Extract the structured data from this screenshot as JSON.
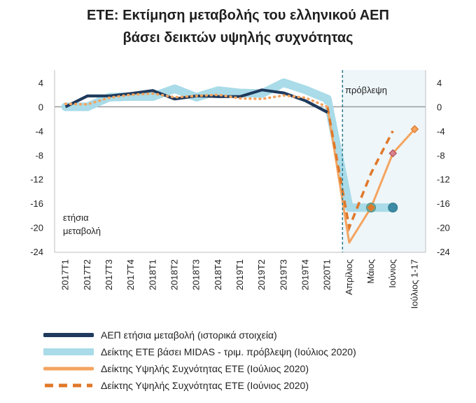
{
  "title_line1": "ΕΤΕ: Εκτίμηση μεταβολής του ελληνικού ΑΕΠ",
  "title_line2": "βάσει δεικτών υψηλής συχνότητας",
  "annotations": {
    "forecast_label": "πρόβλεψη",
    "ylabel_line1": "ετήσια",
    "ylabel_line2": "μεταβολή"
  },
  "colors": {
    "gdp": "#1f3a5c",
    "midas": "#a9dbe8",
    "hf_july": "#f4a45f",
    "hf_june": "#e0782a",
    "forecast_bg": "#eef6f9",
    "divider": "#2b7a8c",
    "zero_line": "#9a9a9a",
    "marker_diamond": "#d9828c"
  },
  "chart_data": {
    "type": "line",
    "categories": [
      "2017T1",
      "2017T2",
      "2017T3",
      "2017T4",
      "2018T1",
      "2018T2",
      "2018T3",
      "2018T4",
      "2019T1",
      "2019T2",
      "2019T3",
      "2019T4",
      "2020T1",
      "Απρίλιος",
      "Μάιος",
      "Ιούνιος",
      "Ιούλιος 1-17"
    ],
    "ylim": [
      -24,
      4
    ],
    "yticks": [
      4,
      0,
      -4,
      -8,
      -12,
      -16,
      -20,
      -24
    ],
    "ytick_labels": [
      "4",
      "0",
      "-4",
      "-8",
      "-12",
      "-16",
      "-20",
      "-24"
    ],
    "forecast_start_index": 13,
    "series": [
      {
        "name": "ΑΕΠ ετήσια μεταβολή (ιστορικά στοιχεία)",
        "style": "gdp",
        "x": [
          0,
          1,
          2,
          3,
          4,
          5,
          6,
          7,
          8,
          9,
          10,
          11,
          12
        ],
        "values": [
          0.0,
          1.8,
          1.8,
          2.2,
          2.7,
          1.3,
          1.8,
          1.7,
          1.7,
          2.8,
          2.3,
          1.0,
          -0.9
        ]
      },
      {
        "name": "Δείκτης ΕΤΕ βάσει MIDAS - τριμ. πρόβλεψη (Ιούλιος 2020)",
        "style": "midas",
        "x": [
          0,
          1,
          2,
          3,
          4,
          5,
          6,
          7,
          8,
          9,
          10,
          11,
          12,
          13,
          14,
          15
        ],
        "values": [
          0.0,
          0.0,
          1.6,
          1.7,
          1.7,
          3.0,
          1.6,
          2.7,
          2.3,
          2.2,
          4.0,
          2.8,
          1.3,
          -16.7,
          -16.7,
          -16.7
        ]
      },
      {
        "name": "Δείκτης Υψηλής Συχνότητας ΕΤΕ (Ιούλιος 2020)",
        "style": "hf_july",
        "x": [
          0,
          1,
          2,
          3,
          4,
          5,
          6,
          7,
          8,
          9,
          10,
          11,
          12,
          13,
          14,
          15,
          16
        ],
        "values": [
          0.5,
          0.4,
          1.5,
          2.0,
          2.2,
          1.6,
          1.8,
          2.0,
          1.4,
          1.3,
          1.9,
          1.5,
          0.0,
          -22.5,
          -16.7,
          -7.7,
          -3.7
        ]
      },
      {
        "name": "Δείκτης Υψηλής Συχνότητας ΕΤΕ (Ιούνιος 2020)",
        "style": "hf_june",
        "x": [
          12,
          13,
          14,
          15
        ],
        "values": [
          0.0,
          -20.0,
          -11.0,
          -4.0
        ]
      }
    ]
  }
}
